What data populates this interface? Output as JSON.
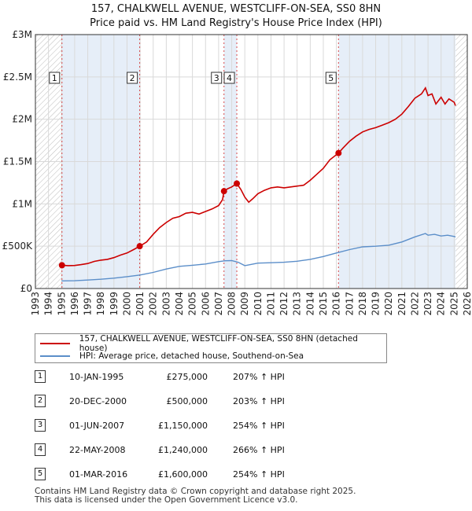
{
  "title_line1": "157, CHALKWELL AVENUE, WESTCLIFF-ON-SEA, SS0 8HN",
  "title_line2": "Price paid vs. HM Land Registry's House Price Index (HPI)",
  "colors": {
    "price_line": "#cc0000",
    "hpi_line": "#5b8ec9",
    "shade": "#e6eef8",
    "hatch": "#bbbbbb",
    "grid": "#d9d9d9",
    "vline": "#cc0000"
  },
  "chart_data": {
    "type": "line",
    "title": "157, CHALKWELL AVENUE, WESTCLIFF-ON-SEA, SS0 8HN — Price paid vs. HM Land Registry's House Price Index (HPI)",
    "xlim": [
      1993,
      2026
    ],
    "ylim": [
      0,
      3000000
    ],
    "y_ticks": [
      {
        "value": 0,
        "label": "£0"
      },
      {
        "value": 500000,
        "label": "£500K"
      },
      {
        "value": 1000000,
        "label": "£1M"
      },
      {
        "value": 1500000,
        "label": "£1.5M"
      },
      {
        "value": 2000000,
        "label": "£2M"
      },
      {
        "value": 2500000,
        "label": "£2.5M"
      },
      {
        "value": 3000000,
        "label": "£3M"
      }
    ],
    "x_ticks": [
      "1993",
      "1994",
      "1995",
      "1996",
      "1997",
      "1998",
      "1999",
      "2000",
      "2001",
      "2002",
      "2003",
      "2004",
      "2005",
      "2006",
      "2007",
      "2008",
      "2009",
      "2010",
      "2011",
      "2012",
      "2013",
      "2014",
      "2015",
      "2016",
      "2017",
      "2018",
      "2019",
      "2020",
      "2021",
      "2022",
      "2023",
      "2024",
      "2025",
      "2026"
    ],
    "shaded_ranges": [
      [
        1995.03,
        2000.97
      ],
      [
        2007.41,
        2008.39
      ],
      [
        2016.16,
        2025.1
      ]
    ],
    "hatched_ranges": [
      [
        1993,
        1995.03
      ],
      [
        2025.1,
        2026
      ]
    ],
    "series": [
      {
        "name": "157, CHALKWELL AVENUE, WESTCLIFF-ON-SEA, SS0 8HN (detached house)",
        "points": [
          [
            1995.03,
            275000
          ],
          [
            1995.5,
            270000
          ],
          [
            1996,
            272000
          ],
          [
            1996.5,
            282000
          ],
          [
            1997,
            295000
          ],
          [
            1997.5,
            320000
          ],
          [
            1998,
            335000
          ],
          [
            1998.5,
            345000
          ],
          [
            1999,
            365000
          ],
          [
            1999.5,
            395000
          ],
          [
            2000,
            420000
          ],
          [
            2000.5,
            460000
          ],
          [
            2000.97,
            500000
          ],
          [
            2001.5,
            550000
          ],
          [
            2002,
            640000
          ],
          [
            2002.5,
            720000
          ],
          [
            2003,
            780000
          ],
          [
            2003.5,
            830000
          ],
          [
            2004,
            850000
          ],
          [
            2004.5,
            890000
          ],
          [
            2005,
            900000
          ],
          [
            2005.5,
            880000
          ],
          [
            2006,
            910000
          ],
          [
            2006.5,
            940000
          ],
          [
            2007,
            980000
          ],
          [
            2007.3,
            1050000
          ],
          [
            2007.41,
            1150000
          ],
          [
            2007.7,
            1180000
          ],
          [
            2008,
            1200000
          ],
          [
            2008.39,
            1240000
          ],
          [
            2008.7,
            1170000
          ],
          [
            2009,
            1080000
          ],
          [
            2009.3,
            1020000
          ],
          [
            2009.6,
            1060000
          ],
          [
            2010,
            1120000
          ],
          [
            2010.5,
            1160000
          ],
          [
            2011,
            1190000
          ],
          [
            2011.5,
            1200000
          ],
          [
            2012,
            1190000
          ],
          [
            2012.5,
            1200000
          ],
          [
            2013,
            1210000
          ],
          [
            2013.5,
            1220000
          ],
          [
            2014,
            1280000
          ],
          [
            2014.5,
            1350000
          ],
          [
            2015,
            1420000
          ],
          [
            2015.5,
            1520000
          ],
          [
            2016.16,
            1600000
          ],
          [
            2016.5,
            1660000
          ],
          [
            2017,
            1740000
          ],
          [
            2017.5,
            1800000
          ],
          [
            2018,
            1850000
          ],
          [
            2018.5,
            1880000
          ],
          [
            2019,
            1900000
          ],
          [
            2019.5,
            1930000
          ],
          [
            2020,
            1960000
          ],
          [
            2020.5,
            2000000
          ],
          [
            2021,
            2060000
          ],
          [
            2021.5,
            2150000
          ],
          [
            2022,
            2250000
          ],
          [
            2022.5,
            2300000
          ],
          [
            2022.8,
            2370000
          ],
          [
            2023,
            2280000
          ],
          [
            2023.3,
            2300000
          ],
          [
            2023.6,
            2180000
          ],
          [
            2024,
            2260000
          ],
          [
            2024.3,
            2180000
          ],
          [
            2024.6,
            2240000
          ],
          [
            2025,
            2200000
          ],
          [
            2025.1,
            2160000
          ]
        ]
      },
      {
        "name": "HPI: Average price, detached house, Southend-on-Sea",
        "points": [
          [
            1995,
            90000
          ],
          [
            1996,
            92000
          ],
          [
            1997,
            100000
          ],
          [
            1998,
            110000
          ],
          [
            1999,
            123000
          ],
          [
            2000,
            140000
          ],
          [
            2001,
            160000
          ],
          [
            2002,
            190000
          ],
          [
            2003,
            230000
          ],
          [
            2004,
            262000
          ],
          [
            2005,
            275000
          ],
          [
            2006,
            290000
          ],
          [
            2007,
            318000
          ],
          [
            2007.5,
            328000
          ],
          [
            2008,
            330000
          ],
          [
            2008.5,
            310000
          ],
          [
            2009,
            270000
          ],
          [
            2009.5,
            285000
          ],
          [
            2010,
            300000
          ],
          [
            2011,
            305000
          ],
          [
            2012,
            310000
          ],
          [
            2013,
            322000
          ],
          [
            2014,
            345000
          ],
          [
            2015,
            378000
          ],
          [
            2016,
            420000
          ],
          [
            2017,
            460000
          ],
          [
            2018,
            492000
          ],
          [
            2019,
            500000
          ],
          [
            2020,
            512000
          ],
          [
            2021,
            550000
          ],
          [
            2022,
            610000
          ],
          [
            2022.8,
            650000
          ],
          [
            2023,
            630000
          ],
          [
            2023.5,
            640000
          ],
          [
            2024,
            620000
          ],
          [
            2024.5,
            630000
          ],
          [
            2025,
            615000
          ],
          [
            2025.1,
            610000
          ]
        ]
      }
    ],
    "markers": [
      {
        "label": "1",
        "x": 1995.03,
        "y": 275000
      },
      {
        "label": "2",
        "x": 2000.97,
        "y": 500000
      },
      {
        "label": "3",
        "x": 2007.41,
        "y": 1150000
      },
      {
        "label": "4",
        "x": 2008.39,
        "y": 1240000
      },
      {
        "label": "5",
        "x": 2016.16,
        "y": 1600000
      }
    ]
  },
  "legend": {
    "price_label": "157, CHALKWELL AVENUE, WESTCLIFF-ON-SEA, SS0 8HN (detached house)",
    "hpi_label": "HPI: Average price, detached house, Southend-on-Sea"
  },
  "sales": [
    {
      "num": "1",
      "date": "10-JAN-1995",
      "price": "£275,000",
      "hpi": "207% ↑ HPI"
    },
    {
      "num": "2",
      "date": "20-DEC-2000",
      "price": "£500,000",
      "hpi": "203% ↑ HPI"
    },
    {
      "num": "3",
      "date": "01-JUN-2007",
      "price": "£1,150,000",
      "hpi": "254% ↑ HPI"
    },
    {
      "num": "4",
      "date": "22-MAY-2008",
      "price": "£1,240,000",
      "hpi": "266% ↑ HPI"
    },
    {
      "num": "5",
      "date": "01-MAR-2016",
      "price": "£1,600,000",
      "hpi": "254% ↑ HPI"
    }
  ],
  "footer_line1": "Contains HM Land Registry data © Crown copyright and database right 2025.",
  "footer_line2": "This data is licensed under the Open Government Licence v3.0."
}
